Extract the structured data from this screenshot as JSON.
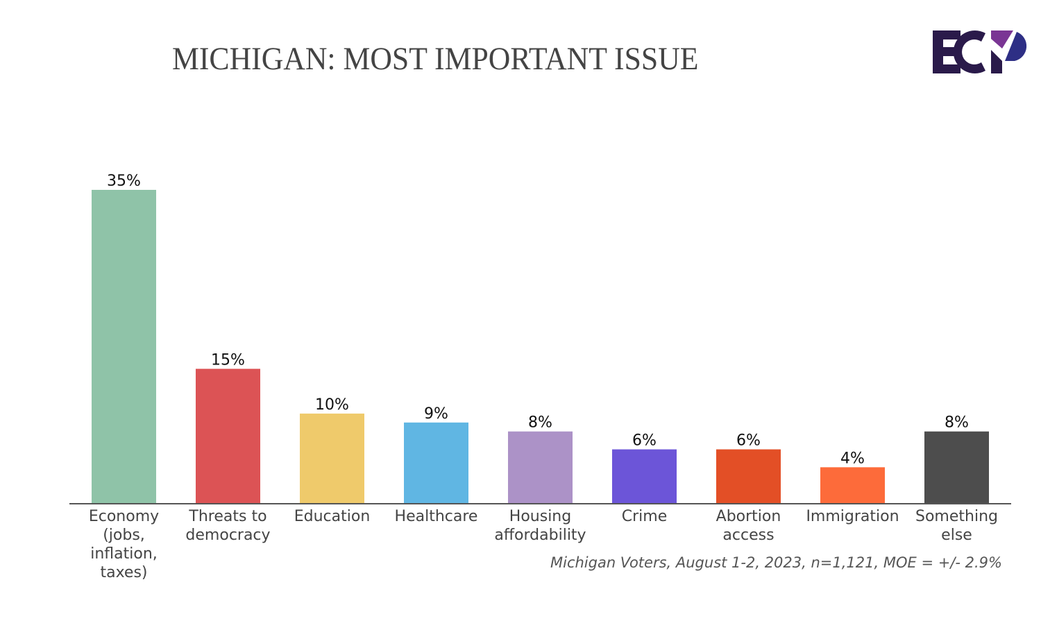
{
  "header": {
    "title": "MICHIGAN: MOST IMPORTANT ISSUE",
    "logo_text": "ECP",
    "logo_colors": {
      "primary": "#2a1a4a",
      "accent_top": "#7a3594",
      "accent_bottom": "#2e2f85"
    }
  },
  "footnote": "Michigan Voters, August 1-2, 2023, n=1,121, MOE = +/- 2.9%",
  "chart_data": {
    "type": "bar",
    "title": "MICHIGAN: MOST IMPORTANT ISSUE",
    "xlabel": "",
    "ylabel": "",
    "ylim": [
      0,
      35
    ],
    "grid": false,
    "legend": "none",
    "unit": "%",
    "categories": [
      "Economy (jobs, inflation, taxes)",
      "Threats to democracy",
      "Education",
      "Healthcare",
      "Housing affordability",
      "Crime",
      "Abortion access",
      "Immigration",
      "Something else"
    ],
    "category_label_lines": [
      [
        "Economy",
        "(jobs,",
        "inflation,",
        "taxes)"
      ],
      [
        "Threats to",
        "democracy"
      ],
      [
        "Education"
      ],
      [
        "Healthcare"
      ],
      [
        "Housing",
        "affordability"
      ],
      [
        "Crime"
      ],
      [
        "Abortion",
        "access"
      ],
      [
        "Immigration"
      ],
      [
        "Something",
        "else"
      ]
    ],
    "values": [
      35,
      15,
      10,
      9,
      8,
      6,
      6,
      4,
      8
    ],
    "data_labels": [
      "35%",
      "15%",
      "10%",
      "9%",
      "8%",
      "6%",
      "6%",
      "4%",
      "8%"
    ],
    "colors": [
      "#8fc3a8",
      "#dc5355",
      "#efca6b",
      "#60b6e3",
      "#ac92c7",
      "#6c55d8",
      "#e34f26",
      "#fd6b3a",
      "#4d4d4d"
    ],
    "axis_color": "#555555"
  }
}
